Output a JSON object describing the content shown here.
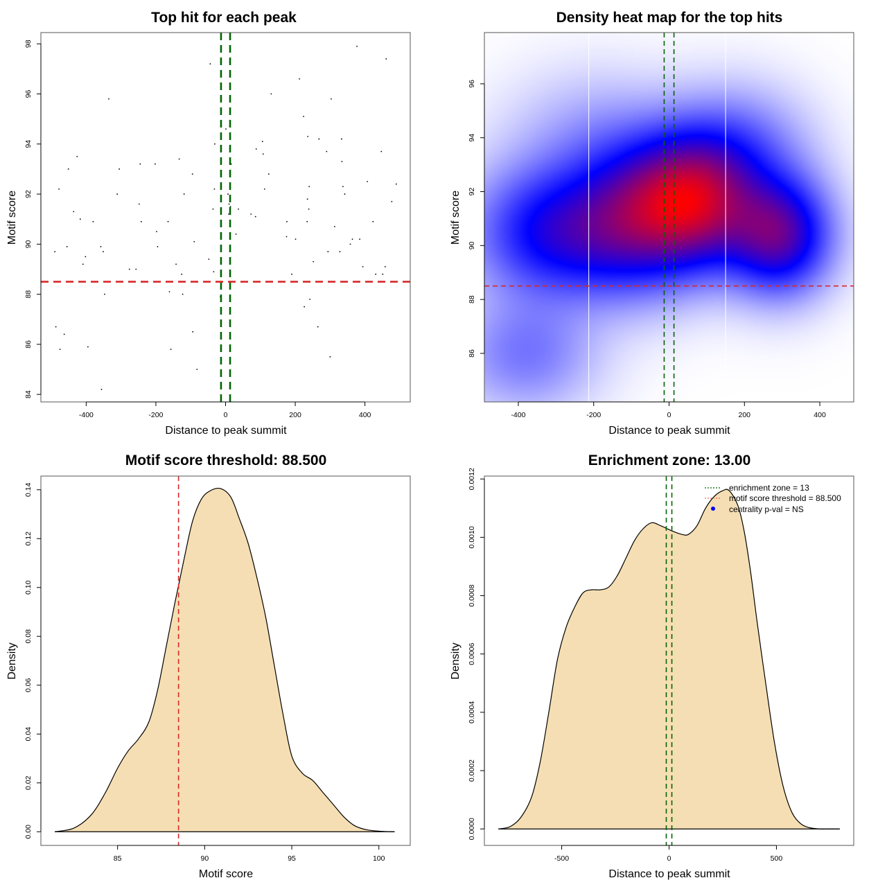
{
  "chart_data": [
    {
      "id": "scatter",
      "type": "scatter",
      "title": "Top hit for each peak",
      "xlabel": "Distance to peak summit",
      "ylabel": "Motif score",
      "xlim": [
        -530,
        530
      ],
      "ylim": [
        83.7,
        98.45
      ],
      "xticks": [
        -400,
        -200,
        0,
        200,
        400
      ],
      "yticks": [
        84,
        86,
        88,
        90,
        92,
        94,
        96,
        98
      ],
      "vlines": [
        -13,
        13
      ],
      "hline": 88.5,
      "colors": {
        "points": "#000000",
        "vlines": "#006400",
        "hline": "#d62728"
      },
      "points": [
        [
          -490,
          89.7
        ],
        [
          -487,
          86.7
        ],
        [
          -478,
          92.2
        ],
        [
          -475,
          85.8
        ],
        [
          -463,
          86.4
        ],
        [
          -455,
          89.9
        ],
        [
          -451,
          93.0
        ],
        [
          -436,
          91.3
        ],
        [
          -426,
          93.5
        ],
        [
          -417,
          91.0
        ],
        [
          -409,
          89.2
        ],
        [
          -402,
          89.5
        ],
        [
          -395,
          85.9
        ],
        [
          -380,
          90.9
        ],
        [
          -358,
          89.9
        ],
        [
          -356,
          84.2
        ],
        [
          -351,
          89.7
        ],
        [
          -347,
          88.0
        ],
        [
          -335,
          95.8
        ],
        [
          -311,
          92.0
        ],
        [
          -305,
          93.0
        ],
        [
          -276,
          89.0
        ],
        [
          -257,
          89.0
        ],
        [
          -248,
          91.6
        ],
        [
          -245,
          93.2
        ],
        [
          -242,
          90.9
        ],
        [
          -202,
          93.2
        ],
        [
          -198,
          90.5
        ],
        [
          -195,
          89.9
        ],
        [
          -165,
          90.9
        ],
        [
          -161,
          88.1
        ],
        [
          -157,
          85.8
        ],
        [
          -142,
          89.2
        ],
        [
          -133,
          93.4
        ],
        [
          -126,
          88.8
        ],
        [
          -123,
          88.0
        ],
        [
          -119,
          92.0
        ],
        [
          -95,
          92.8
        ],
        [
          -94,
          86.5
        ],
        [
          -90,
          90.1
        ],
        [
          -82,
          85.0
        ],
        [
          -48,
          89.4
        ],
        [
          -44,
          97.2
        ],
        [
          -36,
          91.4
        ],
        [
          -34,
          88.9
        ],
        [
          -32,
          92.2
        ],
        [
          -31,
          94.0
        ],
        [
          -15,
          87.9
        ],
        [
          -14,
          93.9
        ],
        [
          1,
          94.6
        ],
        [
          7,
          92.0
        ],
        [
          9,
          91.2
        ],
        [
          10,
          91.6
        ],
        [
          14,
          91.5
        ],
        [
          16,
          93.2
        ],
        [
          30,
          90.4
        ],
        [
          37,
          91.4
        ],
        [
          73,
          91.2
        ],
        [
          86,
          91.1
        ],
        [
          88,
          93.8
        ],
        [
          106,
          94.1
        ],
        [
          108,
          93.6
        ],
        [
          112,
          92.2
        ],
        [
          124,
          92.8
        ],
        [
          131,
          96.0
        ],
        [
          175,
          90.3
        ],
        [
          176,
          90.9
        ],
        [
          190,
          88.8
        ],
        [
          201,
          90.2
        ],
        [
          212,
          96.6
        ],
        [
          224,
          95.1
        ],
        [
          226,
          87.5
        ],
        [
          234,
          90.9
        ],
        [
          235,
          91.8
        ],
        [
          236,
          94.3
        ],
        [
          239,
          91.4
        ],
        [
          240,
          92.3
        ],
        [
          242,
          87.8
        ],
        [
          252,
          89.3
        ],
        [
          265,
          86.7
        ],
        [
          268,
          94.2
        ],
        [
          290,
          93.7
        ],
        [
          294,
          89.7
        ],
        [
          300,
          85.5
        ],
        [
          303,
          95.8
        ],
        [
          313,
          90.7
        ],
        [
          328,
          89.7
        ],
        [
          333,
          94.2
        ],
        [
          334,
          93.3
        ],
        [
          337,
          92.3
        ],
        [
          342,
          92.0
        ],
        [
          358,
          90.0
        ],
        [
          364,
          90.2
        ],
        [
          377,
          97.9
        ],
        [
          385,
          90.2
        ],
        [
          394,
          89.1
        ],
        [
          407,
          92.5
        ],
        [
          423,
          90.9
        ],
        [
          431,
          88.8
        ],
        [
          447,
          93.7
        ],
        [
          451,
          88.8
        ],
        [
          458,
          89.1
        ],
        [
          461,
          97.4
        ],
        [
          477,
          91.7
        ],
        [
          490,
          92.4
        ]
      ]
    },
    {
      "id": "heatmap",
      "type": "heatmap",
      "title": "Density heat map for the top hits",
      "xlabel": "Distance to peak summit",
      "ylabel": "Motif score",
      "xlim": [
        -490,
        490
      ],
      "ylim": [
        84.2,
        97.9
      ],
      "xticks": [
        -400,
        -200,
        0,
        200,
        400
      ],
      "yticks": [
        86,
        88,
        90,
        92,
        94,
        96
      ],
      "vlines": [
        -13,
        13
      ],
      "white_vlines": [
        -213,
        150
      ],
      "hline": 88.5,
      "colormap": [
        "#ffffff",
        "#0000ff",
        "#ff0000"
      ],
      "density_modes": [
        {
          "x": 60,
          "y": 91.6,
          "weight": 1.0,
          "sx": 110,
          "sy": 1.6
        },
        {
          "x": 290,
          "y": 90.4,
          "weight": 0.75,
          "sx": 90,
          "sy": 1.4
        },
        {
          "x": -300,
          "y": 90.5,
          "weight": 0.55,
          "sx": 140,
          "sy": 1.6
        },
        {
          "x": -100,
          "y": 91.0,
          "weight": 0.5,
          "sx": 110,
          "sy": 1.8
        },
        {
          "x": -380,
          "y": 86.0,
          "weight": 0.22,
          "sx": 120,
          "sy": 1.4
        },
        {
          "x": 180,
          "y": 93.5,
          "weight": 0.25,
          "sx": 120,
          "sy": 1.5
        },
        {
          "x": -200,
          "y": 94.0,
          "weight": 0.12,
          "sx": 150,
          "sy": 1.6
        }
      ],
      "colors": {
        "vlines": "#006400",
        "hline": "#d62728"
      }
    },
    {
      "id": "score-density",
      "type": "area",
      "title": "Motif score threshold: 88.500",
      "xlabel": "Motif score",
      "ylabel": "Density",
      "xlim": [
        80.6,
        101.8
      ],
      "ylim": [
        -0.0056,
        0.1456
      ],
      "xticks": [
        85,
        90,
        95,
        100
      ],
      "yticks": [
        "0.00",
        "0.02",
        "0.04",
        "0.06",
        "0.08",
        "0.10",
        "0.12",
        "0.14"
      ],
      "vline": 88.5,
      "fill": "#f5deb3",
      "colors": {
        "vline": "#d62728"
      },
      "x": [
        81.4,
        82.5,
        83.5,
        84.3,
        85.0,
        85.6,
        86.2,
        86.8,
        87.3,
        87.8,
        88.3,
        88.8,
        89.3,
        89.8,
        90.3,
        90.9,
        91.5,
        92.0,
        92.5,
        93.0,
        93.5,
        94.0,
        94.5,
        95.0,
        95.6,
        96.2,
        96.8,
        97.4,
        98.0,
        98.6,
        99.3,
        100.1,
        100.9
      ],
      "y": [
        0.0,
        0.0015,
        0.007,
        0.016,
        0.026,
        0.033,
        0.038,
        0.045,
        0.058,
        0.076,
        0.094,
        0.111,
        0.127,
        0.136,
        0.1395,
        0.1405,
        0.137,
        0.128,
        0.118,
        0.104,
        0.088,
        0.068,
        0.048,
        0.031,
        0.024,
        0.021,
        0.016,
        0.011,
        0.006,
        0.0025,
        0.0008,
        0.0002,
        0.0
      ]
    },
    {
      "id": "distance-density",
      "type": "area",
      "title": "Enrichment zone: 13.00",
      "xlabel": "Distance to peak summit",
      "ylabel": "Density",
      "xlim": [
        -860,
        860
      ],
      "ylim": [
        -5.65e-05,
        0.00121
      ],
      "xticks": [
        -500,
        0,
        500
      ],
      "yticks": [
        "0.0000",
        "0.0002",
        "0.0004",
        "0.0006",
        "0.0008",
        "0.0010",
        "0.0012"
      ],
      "vlines": [
        -13,
        13
      ],
      "fill": "#f5deb3",
      "colors": {
        "vlines": "#006400"
      },
      "x": [
        -795,
        -740,
        -690,
        -640,
        -600,
        -560,
        -520,
        -480,
        -440,
        -400,
        -360,
        -320,
        -280,
        -240,
        -200,
        -160,
        -120,
        -80,
        -40,
        -10,
        20,
        60,
        90,
        130,
        170,
        210,
        250,
        280,
        320,
        350,
        380,
        410,
        450,
        490,
        530,
        570,
        610,
        650,
        700,
        750,
        795
      ],
      "y": [
        0.0,
        8e-06,
        4e-05,
        0.00011,
        0.00023,
        0.0004,
        0.00058,
        0.00069,
        0.00076,
        0.00081,
        0.00082,
        0.00082,
        0.00083,
        0.00087,
        0.00093,
        0.00099,
        0.00103,
        0.00105,
        0.00104,
        0.00103,
        0.00102,
        0.00101,
        0.00101,
        0.00104,
        0.0011,
        0.00114,
        0.00116,
        0.00116,
        0.00111,
        0.00102,
        0.00088,
        0.00071,
        0.0005,
        0.0003,
        0.00015,
        6e-05,
        2e-05,
        5e-06,
        0.0,
        0.0,
        0.0
      ],
      "legend": {
        "position": "top-right",
        "items": [
          {
            "label": "enrichment zone = 13",
            "symbol": "dotted-line",
            "color": "#006400"
          },
          {
            "label": "motif score threshold = 88.500",
            "symbol": "dotted-line",
            "color": "#ff6666"
          },
          {
            "label": "centrality p-val = NS",
            "symbol": "point",
            "color": "#0000ff"
          }
        ]
      }
    }
  ]
}
